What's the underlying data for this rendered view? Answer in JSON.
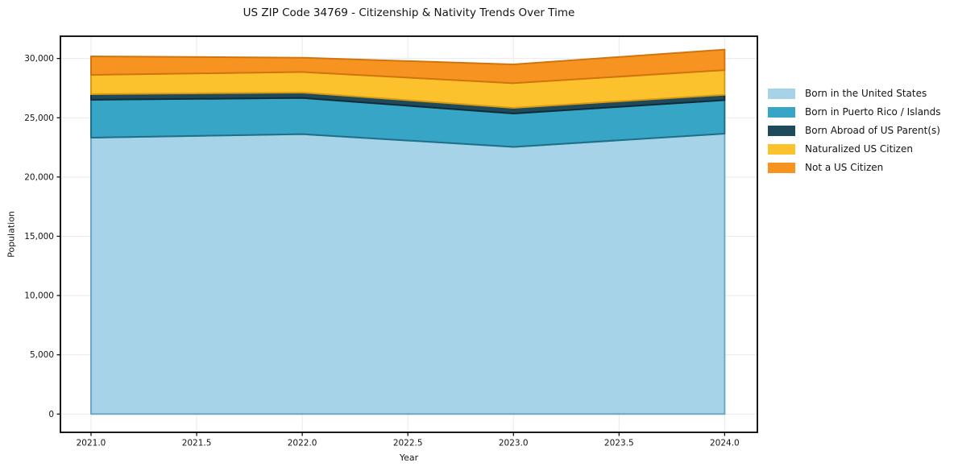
{
  "title": "US ZIP Code 34769 - Citizenship & Nativity Trends Over Time",
  "chart_data": {
    "type": "area",
    "stacked": true,
    "title": "US ZIP Code 34769 - Citizenship & Nativity Trends Over Time",
    "xlabel": "Year",
    "ylabel": "Population",
    "x": [
      2021,
      2022,
      2023,
      2024
    ],
    "xlim": [
      2020.855,
      2024.155
    ],
    "ylim": [
      -1542,
      31878
    ],
    "xticks": [
      2021.0,
      2021.5,
      2022.0,
      2022.5,
      2023.0,
      2023.5,
      2024.0
    ],
    "xtick_labels": [
      "2021.0",
      "2021.5",
      "2022.0",
      "2022.5",
      "2023.0",
      "2023.5",
      "2024.0"
    ],
    "yticks": [
      0,
      5000,
      10000,
      15000,
      20000,
      25000,
      30000
    ],
    "ytick_labels": [
      "0",
      "5,000",
      "10,000",
      "15,000",
      "20,000",
      "25,000",
      "30,000"
    ],
    "grid": true,
    "legend_position": "outside-right",
    "series": [
      {
        "name": "Born in the United States",
        "values": [
          23320,
          23615,
          22540,
          23660
        ],
        "fill": "#A7D3E8",
        "edge": "#6BA8C4"
      },
      {
        "name": "Born in Puerto Rico / Islands",
        "values": [
          3200,
          3055,
          2820,
          2825
        ],
        "fill": "#36A5C6",
        "edge": "#1F6F87"
      },
      {
        "name": "Born Abroad of US Parent(s)",
        "values": [
          470,
          455,
          475,
          455
        ],
        "fill": "#1F4A5C",
        "edge": "#122C37"
      },
      {
        "name": "Naturalized US Citizen",
        "values": [
          1630,
          1735,
          2085,
          2080
        ],
        "fill": "#FCC22E",
        "edge": "#D69B13"
      },
      {
        "name": "Not a US Citizen",
        "values": [
          1560,
          1205,
          1580,
          1730
        ],
        "fill": "#F79421",
        "edge": "#D0750E"
      }
    ]
  },
  "style": {
    "grid_color": "#e9e9e9",
    "spine_color": "#000000",
    "tick_label_color": "#141414",
    "background": "#ffffff"
  }
}
